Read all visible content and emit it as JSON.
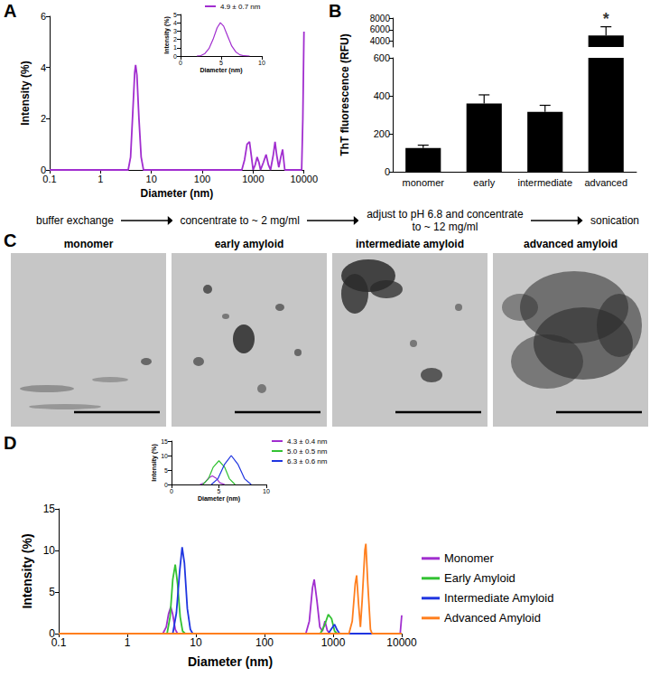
{
  "chart_data": [
    {
      "panel": "A",
      "type": "line",
      "x_label": "Diameter (nm)",
      "y_label": "Intensity (%)",
      "log": "x",
      "grid": false,
      "xlim": [
        0.1,
        10000
      ],
      "xticks": [
        0.1,
        1,
        10,
        100,
        1000,
        10000
      ],
      "ylim": [
        0,
        6
      ],
      "yticks": [
        0,
        2,
        4,
        6
      ],
      "series": [
        {
          "color": "#a12ecf",
          "x": [
            0.1,
            3.5,
            3.9,
            4.3,
            4.7,
            4.9,
            5.2,
            5.7,
            6.3,
            7,
            600,
            680,
            760,
            850,
            930,
            1000,
            1100,
            1200,
            1300,
            1400,
            1600,
            1800,
            2000,
            2200,
            2500,
            2700,
            2900,
            3200,
            3500,
            3800,
            4200,
            9000,
            9500,
            10000
          ],
          "values": [
            0,
            0,
            0.5,
            2.2,
            3.8,
            4.1,
            3.7,
            2.0,
            0.5,
            0,
            0,
            0.4,
            1.0,
            1.1,
            0.5,
            0,
            0.2,
            0.5,
            0.3,
            0,
            0.3,
            0.6,
            0.2,
            0,
            0.6,
            1.1,
            0.6,
            0.1,
            0.5,
            0.8,
            0,
            0,
            2.0,
            5.4
          ]
        }
      ],
      "inset": {
        "type": "line",
        "x_label": "Diameter (nm)",
        "y_label": "Intensity (%)",
        "grid": false,
        "legend": "top",
        "xlim": [
          0,
          10
        ],
        "xticks": [
          0,
          5,
          10
        ],
        "ylim": [
          0,
          5
        ],
        "yticks": [
          0,
          1,
          2,
          3,
          4,
          5
        ],
        "series": [
          {
            "name": "4.9 ± 0.7 nm",
            "color": "#a12ecf",
            "x": [
              2,
              2.5,
              3,
              3.5,
              4,
              4.5,
              4.9,
              5.3,
              5.8,
              6.3,
              6.8,
              7.3,
              7.8,
              8.5
            ],
            "values": [
              0,
              0.05,
              0.3,
              0.9,
              2.0,
              3.4,
              4.0,
              3.6,
              2.4,
              1.2,
              0.5,
              0.15,
              0.03,
              0
            ]
          }
        ]
      }
    },
    {
      "panel": "B",
      "type": "bar",
      "y_label": "ThT fluorescence (RFU)",
      "grid": false,
      "color": "#000000",
      "categories": [
        "monomer",
        "early",
        "intermediate",
        "advanced"
      ],
      "values": [
        125,
        360,
        315,
        5000
      ],
      "errors": [
        15,
        45,
        35,
        1500
      ],
      "ylim": [
        0,
        8000
      ],
      "yticks": [
        0,
        200,
        400,
        600,
        4000,
        6000,
        8000
      ],
      "y_break": [
        600,
        3000
      ],
      "annotations": [
        {
          "category": "advanced",
          "text": "*"
        }
      ]
    },
    {
      "panel": "D",
      "type": "line",
      "x_label": "Diameter (nm)",
      "y_label": "Intensity (%)",
      "log": "x",
      "grid": false,
      "legend": "right",
      "xlim": [
        0.1,
        10000
      ],
      "xticks": [
        0.1,
        1,
        10,
        100,
        1000,
        10000
      ],
      "ylim": [
        0,
        15
      ],
      "yticks": [
        0,
        5,
        10,
        15
      ],
      "series": [
        {
          "name": "Monomer",
          "color": "#a12ecf",
          "x": [
            0.1,
            3.3,
            3.7,
            4.0,
            4.3,
            4.6,
            5.0,
            5.4,
            400,
            450,
            500,
            530,
            580,
            640,
            700,
            760,
            820,
            900,
            9500,
            10000
          ],
          "values": [
            0,
            0,
            0.8,
            2.4,
            3.2,
            2.3,
            0.5,
            0,
            0,
            1.5,
            5.5,
            6.5,
            4.0,
            0.8,
            0.3,
            1.5,
            0.4,
            0,
            0,
            2.2
          ]
        },
        {
          "name": "Early Amyloid",
          "color": "#33c233",
          "x": [
            0.1,
            3.8,
            4.2,
            4.6,
            5.0,
            5.4,
            5.9,
            6.4,
            7,
            650,
            750,
            850,
            950,
            1050,
            1150,
            10000
          ],
          "values": [
            0,
            0,
            2.0,
            6.5,
            8.3,
            6.0,
            2.0,
            0.3,
            0,
            0,
            1.0,
            2.3,
            1.8,
            0.3,
            0,
            0
          ]
        },
        {
          "name": "Intermediate Amyloid",
          "color": "#1f35e0",
          "x": [
            0.1,
            4.6,
            5.2,
            5.8,
            6.3,
            6.8,
            7.5,
            8.3,
            9,
            850,
            950,
            1050,
            1150,
            1250,
            10000
          ],
          "values": [
            0,
            0,
            2.5,
            7.5,
            10.4,
            8.5,
            3.0,
            0.5,
            0,
            0,
            0.6,
            1.1,
            0.4,
            0,
            0
          ]
        },
        {
          "name": "Advanced Amyloid",
          "color": "#ff7f1e",
          "x": [
            0.1,
            1700,
            1900,
            2100,
            2200,
            2350,
            2500,
            2650,
            2900,
            3000,
            3200,
            3500,
            3700,
            10000
          ],
          "values": [
            0,
            0,
            1.5,
            6.0,
            7.0,
            3.5,
            0.8,
            4.0,
            10.0,
            10.8,
            6.0,
            0.5,
            0,
            0
          ]
        }
      ],
      "inset": {
        "type": "line",
        "x_label": "Diameter (nm)",
        "y_label": "Intensity (%)",
        "grid": false,
        "legend": "right",
        "xlim": [
          0,
          10
        ],
        "xticks": [
          0,
          5,
          10
        ],
        "ylim": [
          0,
          15
        ],
        "yticks": [
          0,
          5,
          10,
          15
        ],
        "series": [
          {
            "name": "4.3 ± 0.4 nm",
            "color": "#a12ecf",
            "x": [
              3,
              3.5,
              3.9,
              4.3,
              4.7,
              5.1,
              5.6
            ],
            "values": [
              0,
              0.6,
              2.2,
              3.0,
              2.2,
              0.6,
              0
            ]
          },
          {
            "name": "5.0 ± 0.5 nm",
            "color": "#33c233",
            "x": [
              3.3,
              3.9,
              4.4,
              5.0,
              5.6,
              6.1,
              6.7
            ],
            "values": [
              0,
              2.0,
              6.0,
              8.2,
              6.0,
              2.0,
              0
            ]
          },
          {
            "name": "6.3 ± 0.6 nm",
            "color": "#1f35e0",
            "x": [
              4.2,
              4.9,
              5.6,
              6.3,
              7.0,
              7.7,
              8.4
            ],
            "values": [
              0,
              2.0,
              7.0,
              10.0,
              7.0,
              2.0,
              0
            ]
          }
        ]
      }
    }
  ],
  "workflow": {
    "steps": [
      "buffer exchange",
      "concentrate to ~ 2 mg/ml",
      "adjust to pH 6.8 and concentrate to ~ 12 mg/ml",
      "sonication"
    ]
  },
  "micrographs": {
    "panel": "C",
    "captions": [
      "monomer",
      "early amyloid",
      "intermediate amyloid",
      "advanced amyloid"
    ]
  }
}
